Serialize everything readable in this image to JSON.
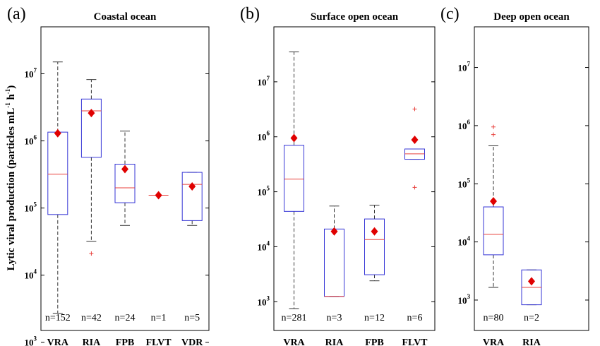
{
  "ylabel": {
    "main": "Lytic viral production (particles mL",
    "exp1": "-1",
    "mid": " h",
    "exp2": "-1",
    "end": ")"
  },
  "colors": {
    "box": "#3535d6",
    "median": "#e8403c",
    "mean": "#e00000",
    "whisker": "#333333",
    "outlier": "#e8403c",
    "frame": "#000000"
  },
  "chart_data": [
    {
      "type": "box",
      "panel_label": "(a)",
      "title": "Coastal ocean",
      "yscale": "log",
      "ylim": [
        1500,
        50000000
      ],
      "yticks": [
        {
          "base": "10",
          "exp": "3",
          "value": 1000
        },
        {
          "base": "10",
          "exp": "4",
          "value": 10000
        },
        {
          "base": "10",
          "exp": "5",
          "value": 100000
        },
        {
          "base": "10",
          "exp": "6",
          "value": 1000000
        },
        {
          "base": "10",
          "exp": "7",
          "value": 10000000
        }
      ],
      "categories": [
        "VRA",
        "RIA",
        "FPB",
        "FLVT",
        "VDR"
      ],
      "n_labels": [
        "n=152",
        "n=42",
        "n=24",
        "n=1",
        "n=5"
      ],
      "boxes": [
        {
          "q1": 80000,
          "median": 320000,
          "q3": 1350000,
          "whisker_low": 2700,
          "whisker_high": 15000000,
          "mean": 1300000,
          "outliers": []
        },
        {
          "q1": 570000,
          "median": 2800000,
          "q3": 4200000,
          "whisker_low": 32000,
          "whisker_high": 8200000,
          "mean": 2600000,
          "outliers": [
            21000
          ]
        },
        {
          "q1": 120000,
          "median": 200000,
          "q3": 450000,
          "whisker_low": 55000,
          "whisker_high": 1400000,
          "mean": 380000,
          "outliers": []
        },
        {
          "q1": 155000,
          "median": 155000,
          "q3": 155000,
          "whisker_low": 155000,
          "whisker_high": 155000,
          "mean": 155000,
          "outliers": []
        },
        {
          "q1": 65000,
          "median": 225000,
          "q3": 340000,
          "whisker_low": 55000,
          "whisker_high": 340000,
          "mean": 210000,
          "outliers": []
        }
      ]
    },
    {
      "type": "box",
      "panel_label": "(b)",
      "title": "Surface open ocean",
      "yscale": "log",
      "ylim": [
        300,
        100000000
      ],
      "yticks": [
        {
          "base": "10",
          "exp": "3",
          "value": 1000
        },
        {
          "base": "10",
          "exp": "4",
          "value": 10000
        },
        {
          "base": "10",
          "exp": "5",
          "value": 100000
        },
        {
          "base": "10",
          "exp": "6",
          "value": 1000000
        },
        {
          "base": "10",
          "exp": "7",
          "value": 10000000
        }
      ],
      "categories": [
        "VRA",
        "RIA",
        "FPB",
        "FLVT"
      ],
      "n_labels": [
        "n=281",
        "n=3",
        "n=12",
        "n=6"
      ],
      "boxes": [
        {
          "q1": 44000,
          "median": 170000,
          "q3": 700000,
          "whisker_low": 750,
          "whisker_high": 35000000,
          "mean": 950000,
          "outliers": []
        },
        {
          "q1": 1250,
          "median": 1250,
          "q3": 21000,
          "whisker_low": 1250,
          "whisker_high": 55000,
          "mean": 19000,
          "outliers": []
        },
        {
          "q1": 3100,
          "median": 13500,
          "q3": 32000,
          "whisker_low": 2400,
          "whisker_high": 57000,
          "mean": 19000,
          "outliers": []
        },
        {
          "q1": 390000,
          "median": 490000,
          "q3": 600000,
          "whisker_low": 390000,
          "whisker_high": 600000,
          "mean": 880000,
          "outliers": [
            3200000,
            120000
          ]
        }
      ]
    },
    {
      "type": "box",
      "panel_label": "(c)",
      "title": "Deep open ocean",
      "yscale": "log",
      "ylim": [
        300,
        50000000
      ],
      "yticks": [
        {
          "base": "10",
          "exp": "3",
          "value": 1000
        },
        {
          "base": "10",
          "exp": "4",
          "value": 10000
        },
        {
          "base": "10",
          "exp": "5",
          "value": 100000
        },
        {
          "base": "10",
          "exp": "6",
          "value": 1000000
        },
        {
          "base": "10",
          "exp": "7",
          "value": 10000000
        }
      ],
      "categories": [
        "VRA",
        "RIA"
      ],
      "n_labels": [
        "n=80",
        "n=2"
      ],
      "boxes": [
        {
          "q1": 6000,
          "median": 13500,
          "q3": 40000,
          "whisker_low": 1650,
          "whisker_high": 450000,
          "mean": 50000,
          "outliers": [
            950000,
            700000
          ]
        },
        {
          "q1": 830,
          "median": 1650,
          "q3": 3300,
          "whisker_low": 830,
          "whisker_high": 3300,
          "mean": 2100,
          "outliers": []
        }
      ]
    }
  ]
}
